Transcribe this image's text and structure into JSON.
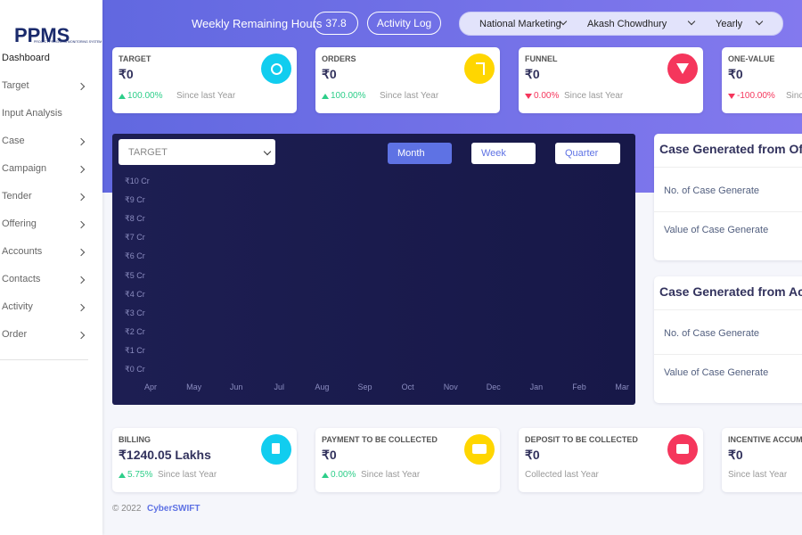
{
  "sidebar": {
    "logo": "PPMS",
    "logo_sub": "PROJECT PROGRESS MONITORING SYSTEM",
    "menu": [
      {
        "label": "Dashboard",
        "has_sub": false
      },
      {
        "label": "Target",
        "has_sub": true
      },
      {
        "label": "Input Analysis",
        "has_sub": false
      },
      {
        "label": "Case",
        "has_sub": true
      },
      {
        "label": "Campaign",
        "has_sub": true
      },
      {
        "label": "Tender",
        "has_sub": true
      },
      {
        "label": "Offering",
        "has_sub": true
      },
      {
        "label": "Accounts",
        "has_sub": true
      },
      {
        "label": "Contacts",
        "has_sub": true
      },
      {
        "label": "Activity",
        "has_sub": true
      },
      {
        "label": "Order",
        "has_sub": true
      }
    ]
  },
  "header": {
    "remaining_label": "Weekly Remaining Hours",
    "remaining_value": "37.8",
    "activity_log": "Activity Log",
    "department": "National Marketing",
    "user": "Akash Chowdhury",
    "period": "Yearly"
  },
  "top_cards": [
    {
      "title": "TARGET",
      "value": "₹0",
      "change": "100.00%",
      "direction": "up",
      "since": "Since last Year",
      "icon_color": "#11cdef",
      "icon": "target"
    },
    {
      "title": "ORDERS",
      "value": "₹0",
      "change": "100.00%",
      "direction": "up",
      "since": "Since last Year",
      "icon_color": "#ffd600",
      "icon": "rupee"
    },
    {
      "title": "FUNNEL",
      "value": "₹0",
      "change": "0.00%",
      "direction": "down",
      "since": "Since last Year",
      "icon_color": "#f5365c",
      "icon": "funnel"
    },
    {
      "title": "ONE-VALUE",
      "value": "₹0",
      "change": "-100.00%",
      "direction": "down",
      "since": "Since",
      "icon_color": "#fb6340",
      "icon": "none"
    }
  ],
  "chart": {
    "metric": "TARGET",
    "buttons": [
      "Month",
      "Week",
      "Quarter"
    ],
    "active": 0,
    "y_labels": [
      "₹10 Cr",
      "₹9 Cr",
      "₹8 Cr",
      "₹7 Cr",
      "₹6 Cr",
      "₹5 Cr",
      "₹4 Cr",
      "₹3 Cr",
      "₹2 Cr",
      "₹1 Cr",
      "₹0 Cr"
    ],
    "x_labels": [
      "Apr",
      "May",
      "Jun",
      "Jul",
      "Aug",
      "Sep",
      "Oct",
      "Nov",
      "Dec",
      "Jan",
      "Feb",
      "Mar"
    ]
  },
  "side_panels": [
    {
      "title": "Case Generated from Of",
      "rows": [
        "No. of Case Generate",
        "Value of Case Generate"
      ]
    },
    {
      "title": "Case Generated from Ac",
      "rows": [
        "No. of Case Generate",
        "Value of Case Generate"
      ]
    }
  ],
  "bottom_cards": [
    {
      "title": "BILLING",
      "value": "₹1240.05 Lakhs",
      "change": "5.75%",
      "direction": "up",
      "since": "Since last Year",
      "icon_color": "#11cdef",
      "icon": "doc"
    },
    {
      "title": "PAYMENT TO BE COLLECTED",
      "value": "₹0",
      "change": "0.00%",
      "direction": "up",
      "since": "Since last Year",
      "icon_color": "#ffd600",
      "icon": "card"
    },
    {
      "title": "DEPOSIT TO BE COLLECTED",
      "value": "₹0",
      "change": null,
      "direction": null,
      "since": "Collected last Year",
      "icon_color": "#f5365c",
      "icon": "wallet"
    },
    {
      "title": "INCENTIVE ACCUMU",
      "value": "₹0",
      "change": null,
      "direction": null,
      "since": "Since last Year",
      "icon_color": "#fb6340",
      "icon": "none"
    }
  ],
  "footer": {
    "copyright": "© 2022",
    "brand": "CyberSWIFT"
  }
}
